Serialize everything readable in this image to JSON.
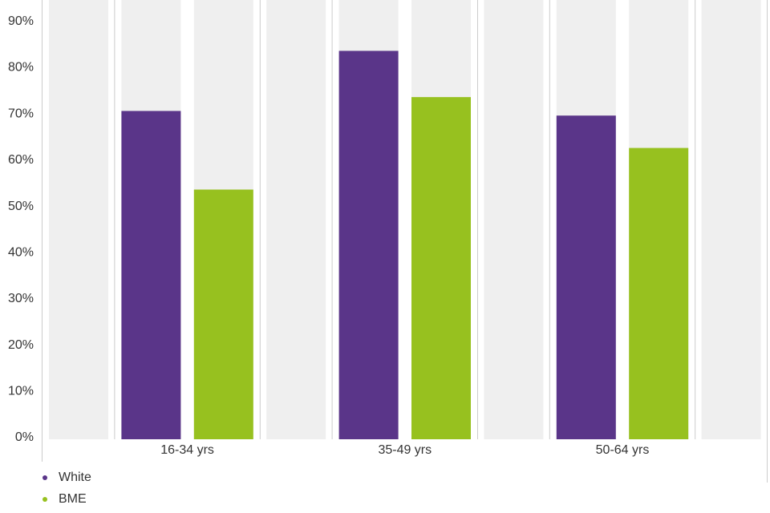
{
  "chart_data": {
    "type": "bar",
    "categories": [
      "16-34 yrs",
      "35-49 yrs",
      "50-64 yrs"
    ],
    "series": [
      {
        "name": "White",
        "color": "#5a3589",
        "values": [
          71,
          84,
          70
        ]
      },
      {
        "name": "BME",
        "color": "#97c11f",
        "values": [
          54,
          74,
          63
        ]
      }
    ],
    "ylim": [
      0,
      95
    ],
    "yticks": [
      {
        "value": 0,
        "label": "0%"
      },
      {
        "value": 10,
        "label": "10%"
      },
      {
        "value": 20,
        "label": "20%"
      },
      {
        "value": 30,
        "label": "30%"
      },
      {
        "value": 40,
        "label": "40%"
      },
      {
        "value": 50,
        "label": "50%"
      },
      {
        "value": 60,
        "label": "60%"
      },
      {
        "value": 70,
        "label": "70%"
      },
      {
        "value": 80,
        "label": "80%"
      },
      {
        "value": 90,
        "label": "90%"
      }
    ],
    "grid": false
  }
}
